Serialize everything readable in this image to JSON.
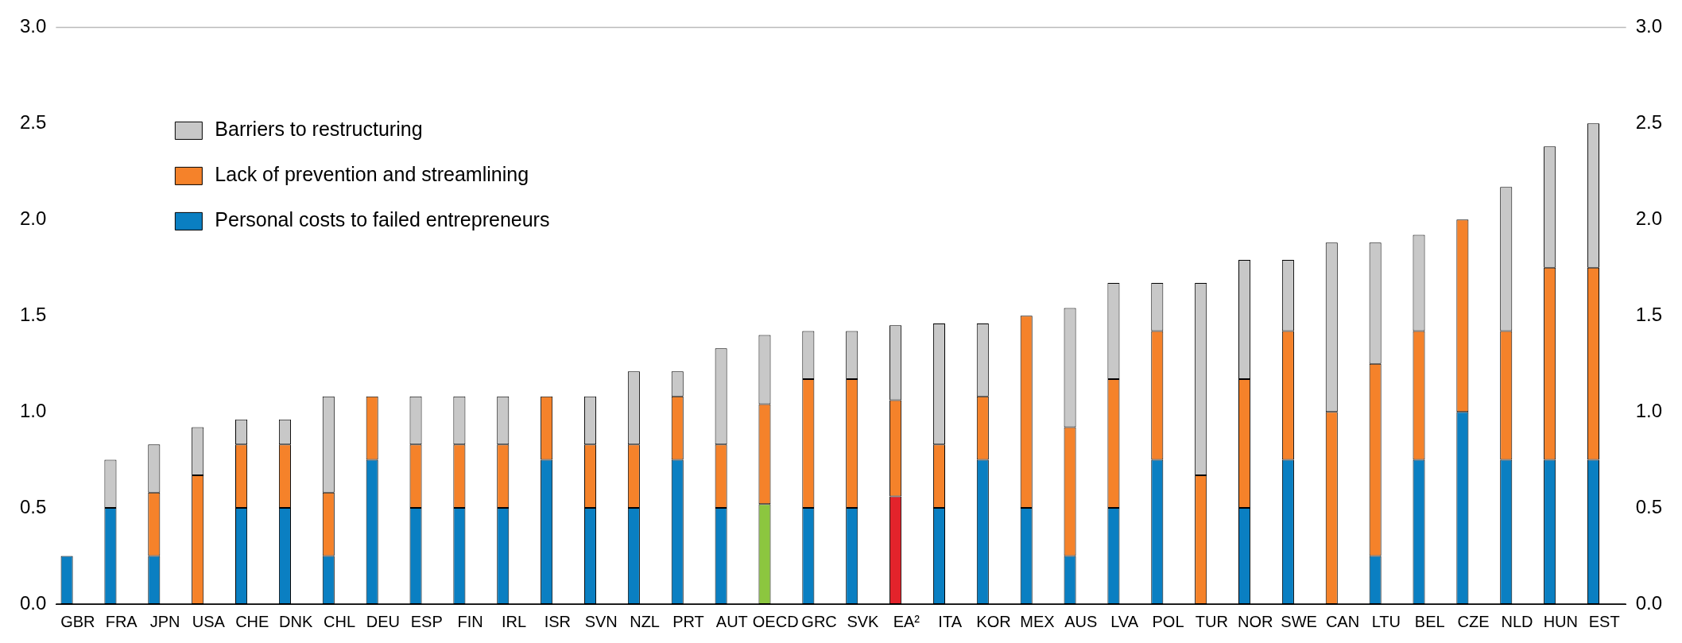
{
  "chart_data": {
    "type": "bar",
    "stacked": true,
    "categories": [
      "GBR",
      "FRA",
      "JPN",
      "USA",
      "CHE",
      "DNK",
      "CHL",
      "DEU",
      "ESP",
      "FIN",
      "IRL",
      "ISR",
      "SVN",
      "NZL",
      "PRT",
      "AUT",
      "OECD",
      "GRC",
      "SVK",
      "EA²",
      "ITA",
      "KOR",
      "MEX",
      "AUS",
      "LVA",
      "POL",
      "TUR",
      "NOR",
      "SWE",
      "CAN",
      "LTU",
      "BEL",
      "CZE",
      "NLD",
      "HUN",
      "EST"
    ],
    "series": [
      {
        "name": "Personal costs to failed entrepreneurs",
        "color": "#0a7fc2",
        "colors": [
          "#0a7fc2",
          "#0a7fc2",
          "#0a7fc2",
          "#0a7fc2",
          "#0a7fc2",
          "#0a7fc2",
          "#0a7fc2",
          "#0a7fc2",
          "#0a7fc2",
          "#0a7fc2",
          "#0a7fc2",
          "#0a7fc2",
          "#0a7fc2",
          "#0a7fc2",
          "#0a7fc2",
          "#0a7fc2",
          "#8cc63f",
          "#0a7fc2",
          "#0a7fc2",
          "#e3232b",
          "#0a7fc2",
          "#0a7fc2",
          "#0a7fc2",
          "#0a7fc2",
          "#0a7fc2",
          "#0a7fc2",
          "#0a7fc2",
          "#0a7fc2",
          "#0a7fc2",
          "#0a7fc2",
          "#0a7fc2",
          "#0a7fc2",
          "#0a7fc2",
          "#0a7fc2",
          "#0a7fc2",
          "#0a7fc2"
        ],
        "values": [
          0.25,
          0.5,
          0.25,
          0,
          0.5,
          0.5,
          0.25,
          0.75,
          0.5,
          0.5,
          0.5,
          0.75,
          0.5,
          0.5,
          0.75,
          0.5,
          0.52,
          0.5,
          0.5,
          0.56,
          0.5,
          0.75,
          0.5,
          0.25,
          0.5,
          0.75,
          0,
          0.5,
          0.75,
          0,
          0.25,
          0.75,
          1.0,
          0.75,
          0.75,
          0.75
        ]
      },
      {
        "name": "Lack of prevention and streamlining",
        "color": "#f5822a",
        "values": [
          0,
          0,
          0.33,
          0.67,
          0.33,
          0.33,
          0.33,
          0.33,
          0.33,
          0.33,
          0.33,
          0.33,
          0.33,
          0.33,
          0.33,
          0.33,
          0.52,
          0.67,
          0.67,
          0.5,
          0.33,
          0.33,
          1.0,
          0.67,
          0.67,
          0.67,
          0.67,
          0.67,
          0.67,
          1.0,
          1.0,
          0.67,
          1.0,
          0.67,
          1.0,
          1.0
        ]
      },
      {
        "name": "Barriers to restructuring",
        "color": "#c8c8c8",
        "values": [
          0,
          0.25,
          0.25,
          0.25,
          0.13,
          0.13,
          0.5,
          0,
          0.25,
          0.25,
          0.25,
          0,
          0.25,
          0.38,
          0.13,
          0.5,
          0.36,
          0.25,
          0.25,
          0.39,
          0.63,
          0.38,
          0,
          0.62,
          0.5,
          0.25,
          1.0,
          0.62,
          0.37,
          0.88,
          0.63,
          0.5,
          0,
          0.75,
          0.63,
          0.75
        ]
      }
    ],
    "ylim": [
      0,
      3
    ],
    "yticks": [
      {
        "value": 0,
        "label": "0.0"
      },
      {
        "value": 0.5,
        "label": "0.5"
      },
      {
        "value": 1,
        "label": "1.0"
      },
      {
        "value": 1.5,
        "label": "1.5"
      },
      {
        "value": 2,
        "label": "2.0"
      },
      {
        "value": 2.5,
        "label": "2.5"
      },
      {
        "value": 3,
        "label": "3.0"
      }
    ],
    "y2lim": [
      0,
      3
    ],
    "y2ticks": [
      {
        "value": 0,
        "label": "0.0"
      },
      {
        "value": 0.5,
        "label": "0.5"
      },
      {
        "value": 1,
        "label": "1.0"
      },
      {
        "value": 1.5,
        "label": "1.5"
      },
      {
        "value": 2,
        "label": "2.0"
      },
      {
        "value": 2.5,
        "label": "2.5"
      },
      {
        "value": 3,
        "label": "3.0"
      }
    ],
    "legend": "top left",
    "grid": false
  }
}
